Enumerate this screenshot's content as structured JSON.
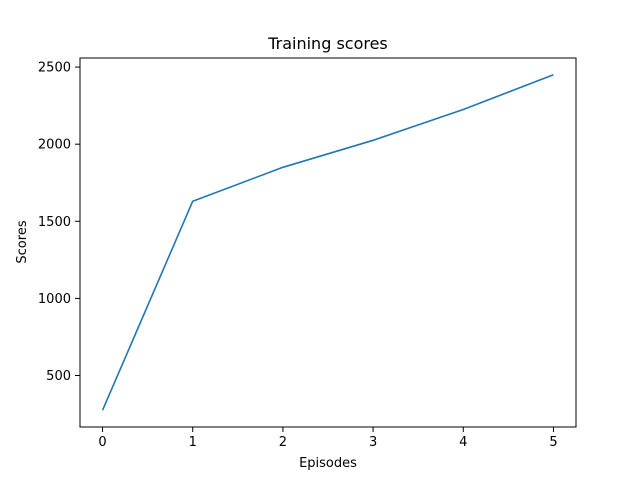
{
  "chart_data": {
    "type": "line",
    "title": "Training scores",
    "xlabel": "Episodes",
    "ylabel": "Scores",
    "x": [
      0,
      1,
      2,
      3,
      4,
      5
    ],
    "series": [
      {
        "values": [
          275,
          1630,
          1850,
          2025,
          2225,
          2450
        ],
        "color": "#1f77b4"
      }
    ],
    "xticks": [
      0,
      1,
      2,
      3,
      4,
      5
    ],
    "yticks": [
      500,
      1000,
      1500,
      2000,
      2500
    ],
    "xlim": [
      -0.25,
      5.25
    ],
    "ylim": [
      166.25,
      2558.75
    ],
    "grid": false,
    "legend": "none"
  }
}
